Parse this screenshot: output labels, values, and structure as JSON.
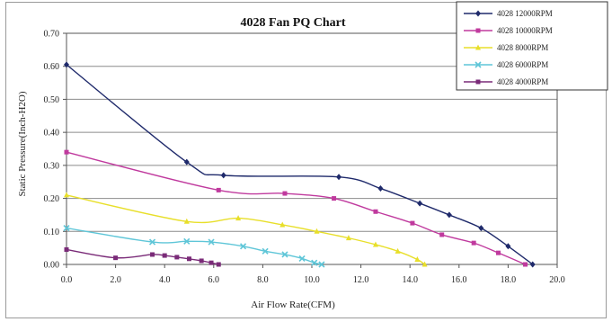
{
  "chart_data": {
    "type": "line",
    "title": "4028  Fan PQ Chart",
    "xlabel": "Air Flow Rate(CFM)",
    "ylabel": "Static Pressure(Inch-H2O)",
    "xlim": [
      0,
      20
    ],
    "ylim": [
      0,
      0.7
    ],
    "x_ticks": [
      "0.0",
      "2.0",
      "4.0",
      "6.0",
      "8.0",
      "10.0",
      "12.0",
      "14.0",
      "16.0",
      "18.0",
      "20.0"
    ],
    "y_ticks": [
      "0.00",
      "0.10",
      "0.20",
      "0.30",
      "0.40",
      "0.50",
      "0.60",
      "0.70"
    ],
    "grid": "horizontal",
    "legend_position": "top-right",
    "series": [
      {
        "name": "4028  12000RPM",
        "color": "#1f2a6b",
        "marker": "diamond",
        "points": [
          [
            0.0,
            0.605
          ],
          [
            4.9,
            0.31
          ],
          [
            6.4,
            0.27
          ],
          [
            11.1,
            0.265
          ],
          [
            12.8,
            0.23
          ],
          [
            14.4,
            0.185
          ],
          [
            15.6,
            0.15
          ],
          [
            16.9,
            0.11
          ],
          [
            18.0,
            0.055
          ],
          [
            19.0,
            0.0
          ]
        ]
      },
      {
        "name": "4028  10000RPM",
        "color": "#c03a9e",
        "marker": "square",
        "points": [
          [
            0.0,
            0.34
          ],
          [
            6.2,
            0.225
          ],
          [
            8.9,
            0.215
          ],
          [
            10.9,
            0.2
          ],
          [
            12.6,
            0.16
          ],
          [
            14.1,
            0.125
          ],
          [
            15.3,
            0.09
          ],
          [
            16.6,
            0.065
          ],
          [
            17.6,
            0.035
          ],
          [
            18.7,
            0.0
          ]
        ]
      },
      {
        "name": "4028  8000RPM",
        "color": "#e8df2a",
        "marker": "triangle",
        "points": [
          [
            0.0,
            0.21
          ],
          [
            4.9,
            0.13
          ],
          [
            7.0,
            0.14
          ],
          [
            8.8,
            0.12
          ],
          [
            10.2,
            0.1
          ],
          [
            11.5,
            0.08
          ],
          [
            12.6,
            0.06
          ],
          [
            13.5,
            0.04
          ],
          [
            14.3,
            0.015
          ],
          [
            14.6,
            0.0
          ]
        ]
      },
      {
        "name": "4028  6000RPM",
        "color": "#5fc6d8",
        "marker": "x",
        "points": [
          [
            0.0,
            0.11
          ],
          [
            3.5,
            0.068
          ],
          [
            4.9,
            0.07
          ],
          [
            5.9,
            0.068
          ],
          [
            7.2,
            0.055
          ],
          [
            8.1,
            0.04
          ],
          [
            8.9,
            0.03
          ],
          [
            9.6,
            0.018
          ],
          [
            10.1,
            0.005
          ],
          [
            10.4,
            0.0
          ]
        ]
      },
      {
        "name": "4028  4000RPM",
        "color": "#7a2b78",
        "marker": "square",
        "points": [
          [
            0.0,
            0.045
          ],
          [
            2.0,
            0.02
          ],
          [
            3.5,
            0.03
          ],
          [
            4.0,
            0.027
          ],
          [
            4.5,
            0.022
          ],
          [
            5.0,
            0.017
          ],
          [
            5.5,
            0.011
          ],
          [
            5.9,
            0.005
          ],
          [
            6.2,
            0.0
          ]
        ]
      }
    ]
  }
}
